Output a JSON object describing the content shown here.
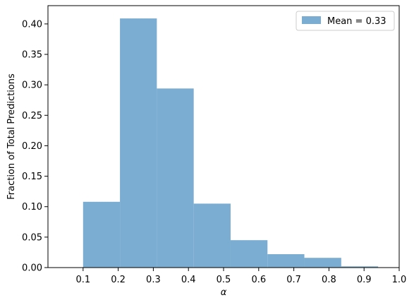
{
  "chart_data": {
    "type": "bar",
    "bins": [
      {
        "x0": 0.1,
        "x1": 0.205,
        "value": 0.108
      },
      {
        "x0": 0.205,
        "x1": 0.31,
        "value": 0.409
      },
      {
        "x0": 0.31,
        "x1": 0.415,
        "value": 0.294
      },
      {
        "x0": 0.415,
        "x1": 0.52,
        "value": 0.105
      },
      {
        "x0": 0.52,
        "x1": 0.625,
        "value": 0.045
      },
      {
        "x0": 0.625,
        "x1": 0.73,
        "value": 0.022
      },
      {
        "x0": 0.73,
        "x1": 0.835,
        "value": 0.016
      },
      {
        "x0": 0.835,
        "x1": 0.94,
        "value": 0.002
      }
    ],
    "xlabel": "α",
    "ylabel": "Fraction of Total Predictions",
    "xlim": [
      0.0,
      1.0
    ],
    "ylim": [
      0.0,
      0.43
    ],
    "xticks": [
      "0.1",
      "0.2",
      "0.3",
      "0.4",
      "0.5",
      "0.6",
      "0.7",
      "0.8",
      "0.9",
      "1.0"
    ],
    "xtick_values": [
      0.1,
      0.2,
      0.3,
      0.4,
      0.5,
      0.6,
      0.7,
      0.8,
      0.9,
      1.0
    ],
    "yticks": [
      "0.00",
      "0.05",
      "0.10",
      "0.15",
      "0.20",
      "0.25",
      "0.30",
      "0.35",
      "0.40"
    ],
    "ytick_values": [
      0.0,
      0.05,
      0.1,
      0.15,
      0.2,
      0.25,
      0.3,
      0.35,
      0.4
    ],
    "legend": {
      "label": "Mean = 0.33",
      "placement": "top-right"
    },
    "bar_color": "#7aadd1",
    "grid": false
  }
}
